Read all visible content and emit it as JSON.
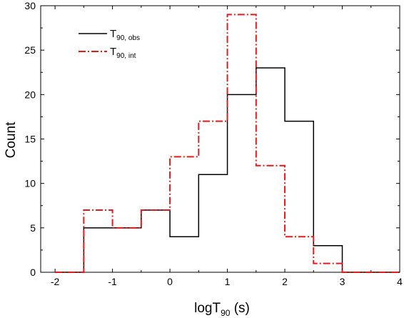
{
  "chart_data": {
    "type": "line",
    "subtype": "step-histogram",
    "title": "",
    "xlabel": {
      "main": "logT",
      "sub": "90",
      "suffix": " (s)"
    },
    "ylabel": "Count",
    "xlim": [
      -2.25,
      4
    ],
    "ylim": [
      0,
      30
    ],
    "xticks": [
      -2,
      -1,
      0,
      1,
      2,
      3,
      4
    ],
    "xtick_labels": [
      "-2",
      "-1",
      "0",
      "1",
      "2",
      "3",
      "4"
    ],
    "yticks": [
      0,
      5,
      10,
      15,
      20,
      25,
      30
    ],
    "ytick_labels": [
      "0",
      "5",
      "10",
      "15",
      "20",
      "25",
      "30"
    ],
    "grid": false,
    "legend_position": "top-left",
    "bin_edges": [
      -2,
      -1.5,
      -1,
      -0.5,
      0,
      0.5,
      1,
      1.5,
      2,
      2.5,
      3,
      3.5,
      4
    ],
    "series": [
      {
        "name": {
          "main": "T",
          "sub": "90, obs"
        },
        "color": "#000000",
        "dash": "solid",
        "values": [
          0,
          5,
          5,
          7,
          4,
          11,
          20,
          23,
          17,
          3,
          0,
          0
        ]
      },
      {
        "name": {
          "main": "T",
          "sub": "90, int"
        },
        "color": "#e41a1c",
        "dash": "dashdot",
        "values": [
          0,
          7,
          5,
          7,
          13,
          17,
          29,
          12,
          4,
          1,
          0,
          0
        ]
      }
    ]
  }
}
